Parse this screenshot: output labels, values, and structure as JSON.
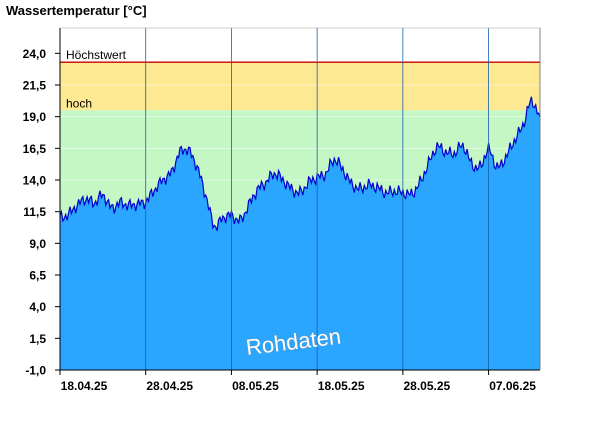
{
  "chart_data": {
    "type": "area",
    "title": "Wassertemperatur [°C]",
    "xlabel": "",
    "ylabel": "Wassertemperatur [°C]",
    "ylim": [
      -1.0,
      26.0
    ],
    "y_ticks": [
      "24,0",
      "21,5",
      "19,0",
      "16,5",
      "14,0",
      "11,5",
      "9,0",
      "6,5",
      "4,0",
      "1,5",
      "-1,0"
    ],
    "y_tick_values": [
      24.0,
      21.5,
      19.0,
      16.5,
      14.0,
      11.5,
      9.0,
      6.5,
      4.0,
      1.5,
      -1.0
    ],
    "x_range": [
      "2025-04-18",
      "2025-06-13"
    ],
    "x_ticks": [
      "18.04.25",
      "28.04.25",
      "08.05.25",
      "18.05.25",
      "28.05.25",
      "07.06.25"
    ],
    "x_tick_dates": [
      "2025-04-18",
      "2025-04-28",
      "2025-05-08",
      "2025-05-18",
      "2025-05-28",
      "2025-06-07"
    ],
    "bands": [
      {
        "label": "hoch",
        "from": 19.5,
        "to": 23.3,
        "color": "#fde992"
      },
      {
        "label": "Höchstwert",
        "value": 23.3,
        "color": "#cc0000"
      },
      {
        "label": "",
        "from": -1.0,
        "to": 19.5,
        "color": "#c4f7c4"
      }
    ],
    "series": [
      {
        "color": "#2aa6ff",
        "line_color": "#0000cc",
        "x": [
          "2025-04-18",
          "2025-04-19",
          "2025-04-20",
          "2025-04-21",
          "2025-04-22",
          "2025-04-23",
          "2025-04-24",
          "2025-04-25",
          "2025-04-26",
          "2025-04-27",
          "2025-04-28",
          "2025-04-29",
          "2025-04-30",
          "2025-05-01",
          "2025-05-02",
          "2025-05-03",
          "2025-05-04",
          "2025-05-05",
          "2025-05-06",
          "2025-05-07",
          "2025-05-08",
          "2025-05-09",
          "2025-05-10",
          "2025-05-11",
          "2025-05-12",
          "2025-05-13",
          "2025-05-14",
          "2025-05-15",
          "2025-05-16",
          "2025-05-17",
          "2025-05-18",
          "2025-05-19",
          "2025-05-20",
          "2025-05-21",
          "2025-05-22",
          "2025-05-23",
          "2025-05-24",
          "2025-05-25",
          "2025-05-26",
          "2025-05-27",
          "2025-05-28",
          "2025-05-29",
          "2025-05-30",
          "2025-05-31",
          "2025-06-01",
          "2025-06-02",
          "2025-06-03",
          "2025-06-04",
          "2025-06-05",
          "2025-06-06",
          "2025-06-07",
          "2025-06-08",
          "2025-06-09",
          "2025-06-10",
          "2025-06-11",
          "2025-06-12",
          "2025-06-13"
        ],
        "values": [
          11.0,
          11.3,
          12.0,
          12.5,
          12.2,
          12.8,
          11.8,
          12.2,
          12.0,
          12.1,
          12.3,
          13.2,
          14.0,
          14.6,
          16.2,
          16.3,
          15.0,
          12.8,
          10.4,
          11.0,
          11.2,
          10.8,
          12.0,
          13.2,
          13.8,
          14.5,
          14.0,
          13.3,
          13.0,
          13.8,
          14.2,
          14.5,
          15.6,
          14.8,
          13.7,
          13.3,
          13.6,
          13.4,
          13.0,
          13.1,
          13.0,
          12.9,
          13.8,
          15.3,
          16.6,
          16.2,
          16.1,
          16.7,
          15.3,
          15.0,
          16.4,
          15.0,
          15.8,
          17.1,
          18.3,
          20.2,
          19.0
        ]
      }
    ],
    "annotations": [
      "Höchstwert",
      "hoch",
      "Rohdaten"
    ],
    "grid": true,
    "legend": "none"
  }
}
